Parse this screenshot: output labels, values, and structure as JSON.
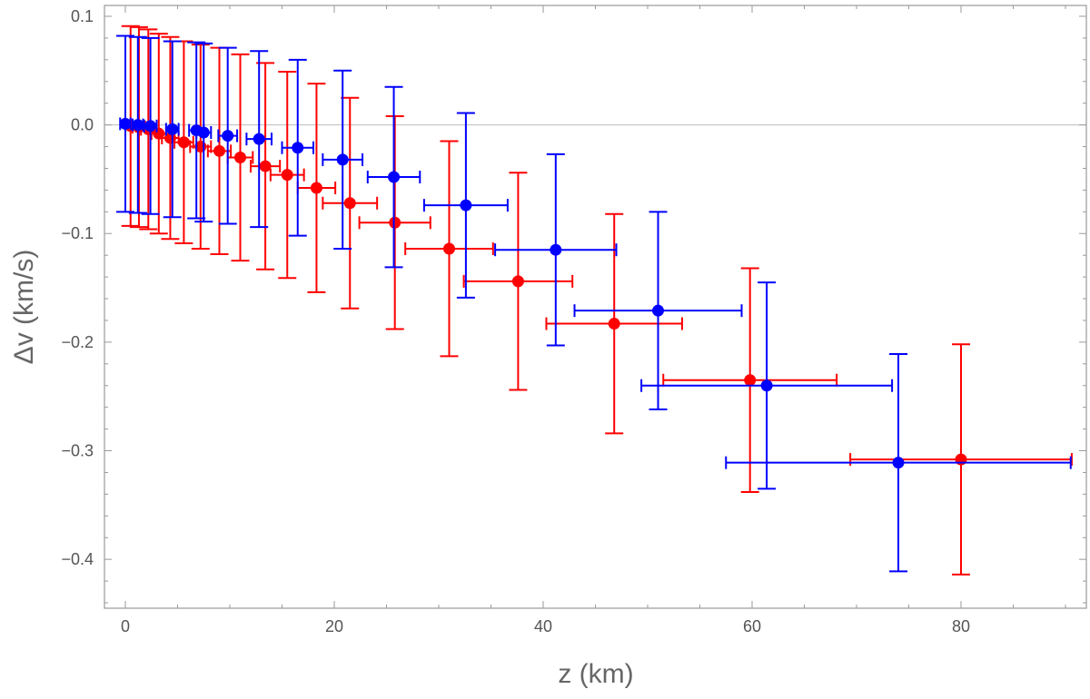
{
  "chart_data": {
    "type": "scatter",
    "title": "",
    "xlabel": "z (km)",
    "ylabel": "Δv (km/s)",
    "xlim": [
      -2,
      92
    ],
    "ylim": [
      -0.445,
      0.11
    ],
    "x_ticks": [
      0,
      20,
      40,
      60,
      80
    ],
    "x_tick_labels": [
      "0",
      "20",
      "40",
      "60",
      "80"
    ],
    "y_ticks": [
      0.1,
      0.0,
      -0.1,
      -0.2,
      -0.3,
      -0.4
    ],
    "y_tick_labels": [
      "0.1",
      "0.0",
      "-0.1",
      "-0.2",
      "-0.3",
      "-0.4"
    ],
    "grid": false,
    "reference_line_y": 0,
    "colors": {
      "red": "#ff0000",
      "blue": "#0000ff",
      "frame": "#999999",
      "zero_line": "#bbbbbb"
    },
    "series": [
      {
        "color": "#ff0000",
        "points": [
          {
            "x": 0.5,
            "y": -0.001,
            "yerr": 0.092,
            "xerr": 0.5
          },
          {
            "x": 1.3,
            "y": -0.002,
            "yerr": 0.092,
            "xerr": 0.6
          },
          {
            "x": 2.2,
            "y": -0.004,
            "yerr": 0.092,
            "xerr": 0.7
          },
          {
            "x": 3.2,
            "y": -0.008,
            "yerr": 0.092,
            "xerr": 0.7
          },
          {
            "x": 4.3,
            "y": -0.012,
            "yerr": 0.093,
            "xerr": 0.8
          },
          {
            "x": 5.6,
            "y": -0.016,
            "yerr": 0.093,
            "xerr": 0.9
          },
          {
            "x": 7.2,
            "y": -0.02,
            "yerr": 0.094,
            "xerr": 1.0
          },
          {
            "x": 9.0,
            "y": -0.024,
            "yerr": 0.095,
            "xerr": 1.1
          },
          {
            "x": 11.0,
            "y": -0.03,
            "yerr": 0.095,
            "xerr": 1.2
          },
          {
            "x": 13.4,
            "y": -0.038,
            "yerr": 0.095,
            "xerr": 1.4
          },
          {
            "x": 15.5,
            "y": -0.046,
            "yerr": 0.095,
            "xerr": 1.6
          },
          {
            "x": 18.3,
            "y": -0.058,
            "yerr": 0.096,
            "xerr": 1.8
          },
          {
            "x": 21.5,
            "y": -0.072,
            "yerr": 0.097,
            "xerr": 2.6
          },
          {
            "x": 25.8,
            "y": -0.09,
            "yerr": 0.098,
            "xerr": 3.4
          },
          {
            "x": 31.0,
            "y": -0.114,
            "yerr": 0.099,
            "xerr": 4.2
          },
          {
            "x": 37.6,
            "y": -0.144,
            "yerr": 0.1,
            "xerr": 5.2
          },
          {
            "x": 46.8,
            "y": -0.183,
            "yerr": 0.101,
            "xerr": 6.5
          },
          {
            "x": 59.8,
            "y": -0.235,
            "yerr": 0.103,
            "xerr": 8.3
          },
          {
            "x": 80.0,
            "y": -0.308,
            "yerr": 0.106,
            "xerr": 10.6
          }
        ]
      },
      {
        "color": "#0000ff",
        "points": [
          {
            "x": 0.0,
            "y": 0.001,
            "yerr": 0.081,
            "xerr": 0.5
          },
          {
            "x": 1.2,
            "y": 0.0,
            "yerr": 0.081,
            "xerr": 0.5
          },
          {
            "x": 2.4,
            "y": -0.001,
            "yerr": 0.081,
            "xerr": 0.6
          },
          {
            "x": 4.5,
            "y": -0.004,
            "yerr": 0.081,
            "xerr": 0.6
          },
          {
            "x": 6.8,
            "y": -0.005,
            "yerr": 0.081,
            "xerr": 0.7
          },
          {
            "x": 7.5,
            "y": -0.007,
            "yerr": 0.082,
            "xerr": 0.7
          },
          {
            "x": 9.8,
            "y": -0.01,
            "yerr": 0.081,
            "xerr": 0.9
          },
          {
            "x": 12.8,
            "y": -0.013,
            "yerr": 0.081,
            "xerr": 1.2
          },
          {
            "x": 16.5,
            "y": -0.021,
            "yerr": 0.081,
            "xerr": 1.5
          },
          {
            "x": 20.8,
            "y": -0.032,
            "yerr": 0.082,
            "xerr": 1.9
          },
          {
            "x": 25.7,
            "y": -0.048,
            "yerr": 0.083,
            "xerr": 2.5
          },
          {
            "x": 32.6,
            "y": -0.074,
            "yerr": 0.085,
            "xerr": 4.0
          },
          {
            "x": 41.2,
            "y": -0.115,
            "yerr": 0.088,
            "xerr": 5.8
          },
          {
            "x": 51.0,
            "y": -0.171,
            "yerr": 0.091,
            "xerr": 8.0
          },
          {
            "x": 61.4,
            "y": -0.24,
            "yerr": 0.095,
            "xerr": 12.0
          },
          {
            "x": 74.0,
            "y": -0.311,
            "yerr": 0.1,
            "xerr": 16.5
          }
        ]
      }
    ]
  }
}
